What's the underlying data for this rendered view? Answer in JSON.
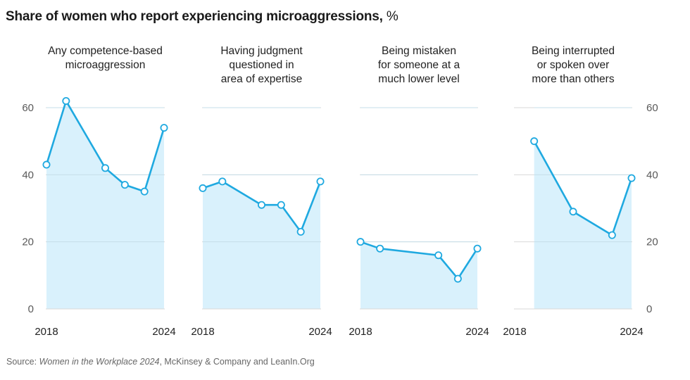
{
  "title": "Share of women who report experiencing microaggressions,",
  "title_unit": "%",
  "source": {
    "prefix": "Source: ",
    "title": "Women in the Workplace 2024",
    "suffix": ", McKinsey & Company and LeanIn.Org"
  },
  "colors": {
    "line": "#1fa9e0",
    "fill": "#d9f1fc",
    "grid": "#d9d9d9",
    "axis_text": "#595959",
    "label_text": "#222222"
  },
  "chart_data": [
    {
      "type": "area",
      "title_lines": [
        "Any competence-based",
        "microaggression"
      ],
      "x": [
        2018,
        2019,
        2021,
        2022,
        2023,
        2024
      ],
      "values": [
        43,
        62,
        42,
        37,
        35,
        54
      ],
      "xticks": [
        "2018",
        "2024"
      ],
      "xlim": [
        2018,
        2024
      ],
      "ylim": [
        0,
        60
      ],
      "yticks": [
        0,
        20,
        40,
        60
      ],
      "y_axis_side": "left",
      "grid": true
    },
    {
      "type": "area",
      "title_lines": [
        "Having judgment",
        "questioned in",
        "area of expertise"
      ],
      "x": [
        2018,
        2019,
        2021,
        2022,
        2023,
        2024
      ],
      "values": [
        36,
        38,
        31,
        31,
        23,
        38
      ],
      "xticks": [
        "2018",
        "2024"
      ],
      "xlim": [
        2018,
        2024
      ],
      "ylim": [
        0,
        60
      ],
      "grid": true
    },
    {
      "type": "area",
      "title_lines": [
        "Being mistaken",
        "for someone at a",
        "much lower level"
      ],
      "x": [
        2018,
        2019,
        2022,
        2023,
        2024
      ],
      "values": [
        20,
        18,
        16,
        9,
        18
      ],
      "xticks": [
        "2018",
        "2024"
      ],
      "xlim": [
        2018,
        2024
      ],
      "ylim": [
        0,
        60
      ],
      "grid": true
    },
    {
      "type": "area",
      "title_lines": [
        "Being interrupted",
        "or spoken over",
        "more than others"
      ],
      "x": [
        2019,
        2021,
        2023,
        2024
      ],
      "values": [
        50,
        29,
        22,
        39
      ],
      "xticks": [
        "2018",
        "2024"
      ],
      "xlim": [
        2018,
        2024
      ],
      "ylim": [
        0,
        60
      ],
      "yticks": [
        0,
        20,
        40,
        60
      ],
      "y_axis_side": "right",
      "grid": true
    }
  ]
}
